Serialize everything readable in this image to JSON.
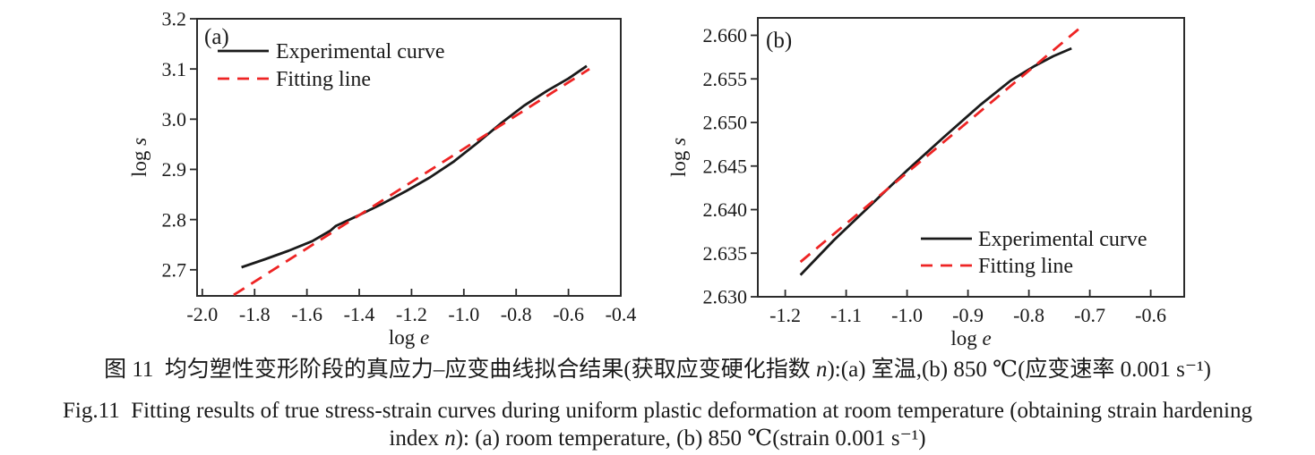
{
  "figure": {
    "caption_cn": {
      "pre_n": "图 11  均匀塑性变形阶段的真应力–应变曲线拟合结果(获取应变硬化指数 ",
      "n": "n",
      "post_n": "):(a) 室温,(b) 850 ℃(应变速率 0.001 s⁻¹)"
    },
    "caption_en_line1": "Fig.11  Fitting results of true stress-strain curves during uniform plastic deformation at room temperature (obtaining strain hardening",
    "caption_en_line2": {
      "pre_n": "index ",
      "n": "n",
      "post_n": "): (a) room temperature, (b) 850 ℃(strain 0.001 s⁻¹)"
    }
  },
  "colors": {
    "experimental": "#1a1a1a",
    "fitting": "#ee2424",
    "frame": "#2b2b2b",
    "text": "#1a1a1a"
  },
  "chart_data": [
    {
      "id": "a",
      "type": "line",
      "panel_label": "(a)",
      "xlabel": {
        "prefix": "log ",
        "variable": "e"
      },
      "ylabel": {
        "prefix": "log ",
        "variable": "s"
      },
      "xlim": [
        -2.02,
        -0.4
      ],
      "ylim": [
        2.648,
        3.2
      ],
      "xticks": [
        {
          "v": -2.0,
          "label": "-2.0"
        },
        {
          "v": -1.8,
          "label": "-1.8"
        },
        {
          "v": -1.6,
          "label": "-1.6"
        },
        {
          "v": -1.4,
          "label": "-1.4"
        },
        {
          "v": -1.2,
          "label": "-1.2"
        },
        {
          "v": -1.0,
          "label": "-1.0"
        },
        {
          "v": -0.8,
          "label": "-0.8"
        },
        {
          "v": -0.6,
          "label": "-0.6"
        },
        {
          "v": -0.4,
          "label": "-0.4"
        }
      ],
      "yticks": [
        {
          "v": 2.7,
          "label": "2.7"
        },
        {
          "v": 2.8,
          "label": "2.8"
        },
        {
          "v": 2.9,
          "label": "2.9"
        },
        {
          "v": 3.0,
          "label": "3.0"
        },
        {
          "v": 3.1,
          "label": "3.1"
        },
        {
          "v": 3.2,
          "label": "3.2"
        }
      ],
      "legend_position": "top-left",
      "series": [
        {
          "name": "Experimental curve",
          "style": "solid",
          "color": "#1a1a1a",
          "points": [
            [
              -1.85,
              2.705
            ],
            [
              -1.76,
              2.721
            ],
            [
              -1.67,
              2.738
            ],
            [
              -1.58,
              2.757
            ],
            [
              -1.51,
              2.778
            ],
            [
              -1.49,
              2.787
            ],
            [
              -1.4,
              2.809
            ],
            [
              -1.31,
              2.832
            ],
            [
              -1.22,
              2.857
            ],
            [
              -1.13,
              2.884
            ],
            [
              -1.04,
              2.915
            ],
            [
              -0.95,
              2.952
            ],
            [
              -0.86,
              2.991
            ],
            [
              -0.77,
              3.027
            ],
            [
              -0.68,
              3.057
            ],
            [
              -0.6,
              3.081
            ],
            [
              -0.53,
              3.106
            ]
          ]
        },
        {
          "name": "Fitting line",
          "style": "dashed",
          "color": "#ee2424",
          "points": [
            [
              -1.88,
              2.65
            ],
            [
              -0.52,
              3.1
            ]
          ]
        }
      ]
    },
    {
      "id": "b",
      "type": "line",
      "panel_label": "(b)",
      "xlabel": {
        "prefix": "log ",
        "variable": "e"
      },
      "ylabel": {
        "prefix": "log ",
        "variable": "s"
      },
      "xlim": [
        -1.245,
        -0.545
      ],
      "ylim": [
        2.63,
        2.662
      ],
      "xticks": [
        {
          "v": -1.2,
          "label": "-1.2"
        },
        {
          "v": -1.1,
          "label": "-1.1"
        },
        {
          "v": -1.0,
          "label": "-1.0"
        },
        {
          "v": -0.9,
          "label": "-0.9"
        },
        {
          "v": -0.8,
          "label": "-0.8"
        },
        {
          "v": -0.7,
          "label": "-0.7"
        },
        {
          "v": -0.6,
          "label": "-0.6"
        }
      ],
      "yticks": [
        {
          "v": 2.63,
          "label": "2.630"
        },
        {
          "v": 2.635,
          "label": "2.635"
        },
        {
          "v": 2.64,
          "label": "2.640"
        },
        {
          "v": 2.645,
          "label": "2.645"
        },
        {
          "v": 2.65,
          "label": "2.650"
        },
        {
          "v": 2.655,
          "label": "2.655"
        },
        {
          "v": 2.66,
          "label": "2.660"
        }
      ],
      "legend_position": "bottom-right",
      "series": [
        {
          "name": "Experimental curve",
          "style": "solid",
          "color": "#1a1a1a",
          "points": [
            [
              -1.175,
              2.6325
            ],
            [
              -1.12,
              2.6365
            ],
            [
              -1.06,
              2.6405
            ],
            [
              -1.0,
              2.6445
            ],
            [
              -0.94,
              2.6483
            ],
            [
              -0.88,
              2.652
            ],
            [
              -0.83,
              2.6548
            ],
            [
              -0.79,
              2.6565
            ],
            [
              -0.76,
              2.6576
            ],
            [
              -0.73,
              2.6585
            ]
          ]
        },
        {
          "name": "Fitting line",
          "style": "dashed",
          "color": "#ee2424",
          "points": [
            [
              -1.175,
              2.634
            ],
            [
              -0.71,
              2.6612
            ]
          ]
        }
      ]
    }
  ]
}
